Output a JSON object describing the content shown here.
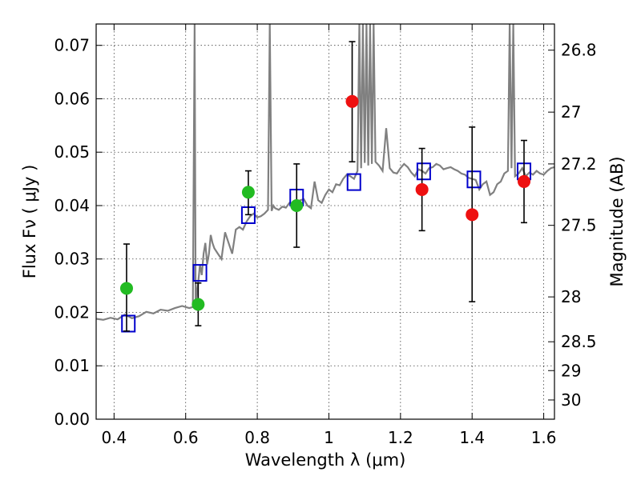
{
  "chart_data": {
    "type": "scatter",
    "xlabel": "Wavelength  λ (μm)",
    "ylabel": "Flux  Fν  ( μJy )",
    "y2label": "Magnitude (AB)",
    "xlim": [
      0.35,
      1.63
    ],
    "ylim": [
      0.0,
      0.074
    ],
    "grid": true,
    "x_ticks": [
      0.4,
      0.6,
      0.8,
      1.0,
      1.2,
      1.4,
      1.6
    ],
    "x_tick_labels": [
      "0.4",
      "0.6",
      "0.8",
      "1",
      "1.2",
      "1.4",
      "1.6"
    ],
    "y_ticks": [
      0.0,
      0.01,
      0.02,
      0.03,
      0.04,
      0.05,
      0.06,
      0.07
    ],
    "y_tick_labels": [
      "0.00",
      "0.01",
      "0.02",
      "0.03",
      "0.04",
      "0.05",
      "0.06",
      "0.07"
    ],
    "y2_ticks": [
      {
        "label": "26.8",
        "flux": 0.0691
      },
      {
        "label": "27",
        "flux": 0.0575
      },
      {
        "label": "27.2",
        "flux": 0.0478
      },
      {
        "label": "27.5",
        "flux": 0.0363
      },
      {
        "label": "28",
        "flux": 0.0229
      },
      {
        "label": "28.5",
        "flux": 0.0145
      },
      {
        "label": "29",
        "flux": 0.0091
      },
      {
        "label": "30",
        "flux": 0.0036
      }
    ],
    "colors": {
      "spectrum": "#808080",
      "model_box": "#0000cc",
      "obs_green": "#22bb22",
      "obs_red": "#ee1111",
      "errorbar": "#000000"
    },
    "spectrum": {
      "x": [
        0.35,
        0.37,
        0.39,
        0.41,
        0.43,
        0.45,
        0.47,
        0.49,
        0.51,
        0.53,
        0.55,
        0.57,
        0.59,
        0.61,
        0.62,
        0.625,
        0.628,
        0.631,
        0.635,
        0.64,
        0.645,
        0.65,
        0.655,
        0.66,
        0.665,
        0.67,
        0.675,
        0.68,
        0.69,
        0.7,
        0.71,
        0.72,
        0.73,
        0.74,
        0.75,
        0.76,
        0.77,
        0.78,
        0.79,
        0.8,
        0.81,
        0.82,
        0.83,
        0.835,
        0.84,
        0.845,
        0.85,
        0.86,
        0.87,
        0.88,
        0.89,
        0.9,
        0.91,
        0.92,
        0.93,
        0.94,
        0.95,
        0.96,
        0.97,
        0.98,
        0.99,
        1.0,
        1.01,
        1.02,
        1.03,
        1.04,
        1.05,
        1.06,
        1.07,
        1.08,
        1.085,
        1.09,
        1.095,
        1.1,
        1.105,
        1.11,
        1.115,
        1.12,
        1.125,
        1.13,
        1.14,
        1.15,
        1.16,
        1.17,
        1.18,
        1.19,
        1.2,
        1.21,
        1.22,
        1.23,
        1.24,
        1.25,
        1.26,
        1.27,
        1.28,
        1.29,
        1.3,
        1.31,
        1.32,
        1.33,
        1.34,
        1.35,
        1.36,
        1.37,
        1.38,
        1.39,
        1.4,
        1.41,
        1.42,
        1.43,
        1.44,
        1.45,
        1.46,
        1.47,
        1.48,
        1.49,
        1.5,
        1.505,
        1.51,
        1.515,
        1.52,
        1.53,
        1.54,
        1.55,
        1.56,
        1.57,
        1.58,
        1.59,
        1.6,
        1.61,
        1.62,
        1.63
      ],
      "y": [
        0.0188,
        0.0186,
        0.019,
        0.0187,
        0.0196,
        0.0189,
        0.0193,
        0.0201,
        0.0198,
        0.0205,
        0.0203,
        0.0208,
        0.0212,
        0.0208,
        0.021,
        0.074,
        0.0205,
        0.0238,
        0.0256,
        0.029,
        0.027,
        0.031,
        0.033,
        0.029,
        0.031,
        0.0345,
        0.033,
        0.032,
        0.031,
        0.03,
        0.035,
        0.033,
        0.031,
        0.0355,
        0.036,
        0.0355,
        0.037,
        0.038,
        0.0385,
        0.0378,
        0.038,
        0.0385,
        0.0392,
        0.074,
        0.039,
        0.04,
        0.0395,
        0.0392,
        0.0398,
        0.0396,
        0.0405,
        0.0402,
        0.0406,
        0.041,
        0.0412,
        0.04,
        0.0395,
        0.0445,
        0.041,
        0.0405,
        0.042,
        0.043,
        0.0425,
        0.044,
        0.0438,
        0.045,
        0.0458,
        0.0455,
        0.045,
        0.0465,
        0.074,
        0.047,
        0.074,
        0.048,
        0.074,
        0.0475,
        0.074,
        0.0478,
        0.074,
        0.0482,
        0.0475,
        0.0465,
        0.0545,
        0.047,
        0.0462,
        0.046,
        0.047,
        0.0478,
        0.0472,
        0.0462,
        0.0455,
        0.0468,
        0.0465,
        0.046,
        0.047,
        0.0472,
        0.0478,
        0.0475,
        0.0468,
        0.047,
        0.0472,
        0.0468,
        0.0465,
        0.046,
        0.0458,
        0.0452,
        0.045,
        0.0448,
        0.043,
        0.044,
        0.0445,
        0.042,
        0.0425,
        0.044,
        0.0445,
        0.046,
        0.0465,
        0.074,
        0.047,
        0.074,
        0.0455,
        0.046,
        0.047,
        0.0455,
        0.0462,
        0.0458,
        0.0465,
        0.046,
        0.0458,
        0.0465,
        0.047,
        0.0472
      ]
    },
    "model_boxes": [
      {
        "x": 0.44,
        "y": 0.0179
      },
      {
        "x": 0.64,
        "y": 0.0274
      },
      {
        "x": 0.775,
        "y": 0.0382
      },
      {
        "x": 0.91,
        "y": 0.0415
      },
      {
        "x": 1.07,
        "y": 0.0444
      },
      {
        "x": 1.265,
        "y": 0.0464
      },
      {
        "x": 1.405,
        "y": 0.0449
      },
      {
        "x": 1.545,
        "y": 0.0464
      }
    ],
    "observed": [
      {
        "x": 0.435,
        "y": 0.0245,
        "err_low": 0.0165,
        "err_high": 0.0328,
        "color": "green"
      },
      {
        "x": 0.635,
        "y": 0.0215,
        "err_low": 0.0175,
        "err_high": 0.0255,
        "color": "green"
      },
      {
        "x": 0.775,
        "y": 0.0425,
        "err_low": 0.0383,
        "err_high": 0.0465,
        "color": "green"
      },
      {
        "x": 0.91,
        "y": 0.04,
        "err_low": 0.0322,
        "err_high": 0.0478,
        "color": "green"
      },
      {
        "x": 1.065,
        "y": 0.0595,
        "err_low": 0.0482,
        "err_high": 0.0707,
        "color": "red"
      },
      {
        "x": 1.26,
        "y": 0.043,
        "err_low": 0.0353,
        "err_high": 0.0507,
        "color": "red"
      },
      {
        "x": 1.4,
        "y": 0.0383,
        "err_low": 0.022,
        "err_high": 0.0547,
        "color": "red"
      },
      {
        "x": 1.545,
        "y": 0.0445,
        "err_low": 0.0368,
        "err_high": 0.0522,
        "color": "red"
      }
    ]
  }
}
